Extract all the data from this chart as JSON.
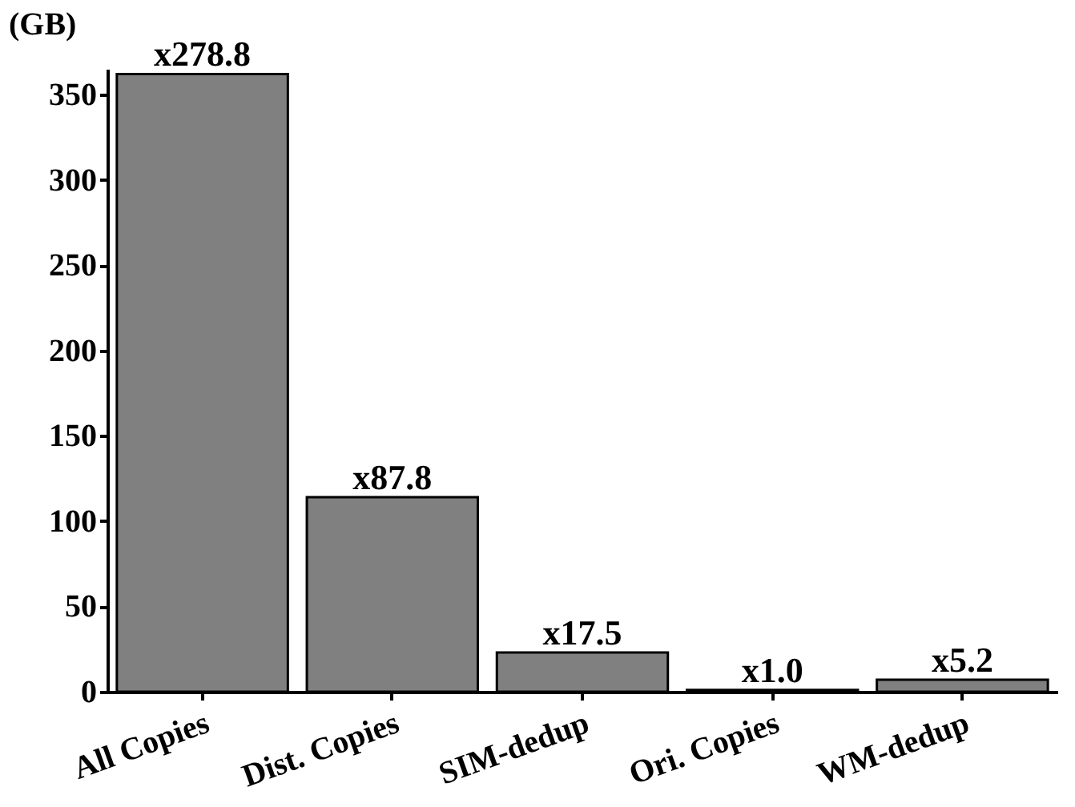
{
  "chart_data": {
    "type": "bar",
    "ylabel": "(GB)",
    "categories": [
      "All Copies",
      "Dist. Copies",
      "SIM-dedup",
      "Ori. Copies",
      "WM-dedup"
    ],
    "values": [
      362,
      114,
      23,
      1,
      7
    ],
    "value_labels": [
      "x278.8",
      "x87.8",
      "x17.5",
      "x1.0",
      "x5.2"
    ],
    "color": "#808080",
    "ylim": [
      0,
      365
    ],
    "yticks": [
      0,
      50,
      100,
      150,
      200,
      250,
      300,
      350
    ],
    "grid": false
  }
}
